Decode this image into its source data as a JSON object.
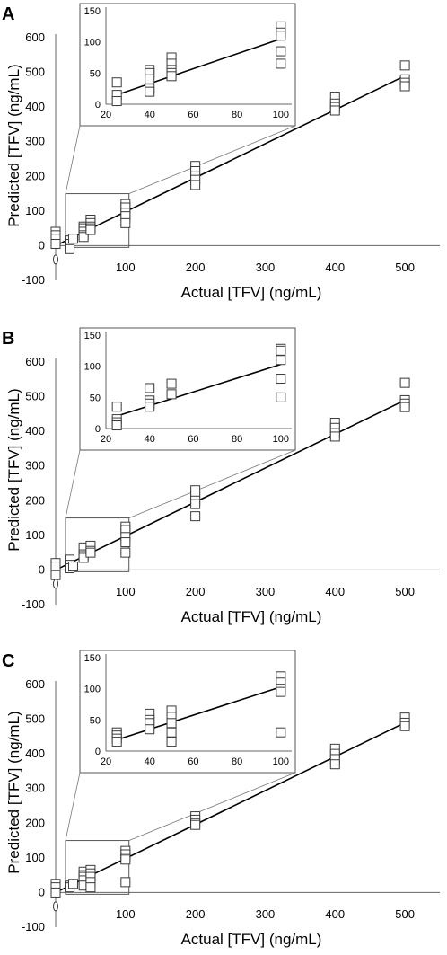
{
  "figure": {
    "chart_data": [
      {
        "type": "scatter",
        "panel": "A",
        "xlabel": "Actual [TFV] (ng/mL)",
        "ylabel": "Predicted [TFV] (ng/mL)",
        "x_ticks": [
          "100",
          "200",
          "300",
          "400",
          "500"
        ],
        "y_ticks": [
          "-100",
          "0",
          "100",
          "200",
          "300",
          "400",
          "500",
          "600"
        ],
        "xlim": [
          0,
          550
        ],
        "ylim": [
          -100,
          600
        ],
        "fit": [
          [
            0,
            0
          ],
          [
            500,
            490
          ]
        ],
        "points": [
          [
            0,
            40
          ],
          [
            0,
            30
          ],
          [
            0,
            20
          ],
          [
            0,
            5
          ],
          [
            0,
            -40
          ],
          [
            20,
            15
          ],
          [
            20,
            5
          ],
          [
            20,
            -10
          ],
          [
            25,
            20
          ],
          [
            40,
            55
          ],
          [
            40,
            50
          ],
          [
            40,
            40
          ],
          [
            40,
            30
          ],
          [
            40,
            25
          ],
          [
            50,
            75
          ],
          [
            50,
            65
          ],
          [
            50,
            55
          ],
          [
            50,
            50
          ],
          [
            50,
            45
          ],
          [
            100,
            120
          ],
          [
            100,
            110
          ],
          [
            100,
            95
          ],
          [
            100,
            85
          ],
          [
            100,
            65
          ],
          [
            200,
            230
          ],
          [
            200,
            215
          ],
          [
            200,
            200
          ],
          [
            200,
            190
          ],
          [
            200,
            175
          ],
          [
            400,
            430
          ],
          [
            400,
            410
          ],
          [
            400,
            400
          ],
          [
            400,
            390
          ],
          [
            500,
            520
          ],
          [
            500,
            480
          ],
          [
            500,
            470
          ],
          [
            500,
            460
          ]
        ],
        "inset": {
          "x_ticks": [
            "20",
            "40",
            "60",
            "80",
            "100"
          ],
          "y_ticks": [
            "0",
            "50",
            "100",
            "150"
          ],
          "xlim": [
            20,
            105
          ],
          "ylim": [
            0,
            150
          ],
          "fit": [
            [
              25,
              15
            ],
            [
              100,
              105
            ]
          ],
          "points": [
            [
              25,
              35
            ],
            [
              25,
              15
            ],
            [
              25,
              5
            ],
            [
              40,
              55
            ],
            [
              40,
              50
            ],
            [
              40,
              40
            ],
            [
              40,
              25
            ],
            [
              40,
              20
            ],
            [
              50,
              75
            ],
            [
              50,
              65
            ],
            [
              50,
              55
            ],
            [
              50,
              50
            ],
            [
              50,
              45
            ],
            [
              100,
              125
            ],
            [
              100,
              115
            ],
            [
              100,
              110
            ],
            [
              100,
              85
            ],
            [
              100,
              65
            ]
          ]
        }
      },
      {
        "type": "scatter",
        "panel": "B",
        "xlabel": "Actual [TFV] (ng/mL)",
        "ylabel": "Predicted [TFV] (ng/mL)",
        "x_ticks": [
          "100",
          "200",
          "300",
          "400",
          "500"
        ],
        "y_ticks": [
          "-100",
          "0",
          "100",
          "200",
          "300",
          "400",
          "500",
          "600"
        ],
        "xlim": [
          0,
          550
        ],
        "ylim": [
          -100,
          600
        ],
        "fit": [
          [
            0,
            0
          ],
          [
            500,
            490
          ]
        ],
        "points": [
          [
            0,
            20
          ],
          [
            0,
            10
          ],
          [
            0,
            -15
          ],
          [
            0,
            -40
          ],
          [
            20,
            30
          ],
          [
            20,
            15
          ],
          [
            20,
            5
          ],
          [
            25,
            10
          ],
          [
            40,
            65
          ],
          [
            40,
            45
          ],
          [
            40,
            40
          ],
          [
            40,
            35
          ],
          [
            50,
            70
          ],
          [
            50,
            55
          ],
          [
            50,
            50
          ],
          [
            100,
            125
          ],
          [
            100,
            115
          ],
          [
            100,
            95
          ],
          [
            100,
            80
          ],
          [
            100,
            50
          ],
          [
            200,
            230
          ],
          [
            200,
            215
          ],
          [
            200,
            200
          ],
          [
            200,
            190
          ],
          [
            200,
            155
          ],
          [
            400,
            425
          ],
          [
            400,
            410
          ],
          [
            400,
            395
          ],
          [
            400,
            385
          ],
          [
            500,
            540
          ],
          [
            500,
            490
          ],
          [
            500,
            480
          ],
          [
            500,
            470
          ]
        ],
        "inset": {
          "x_ticks": [
            "20",
            "40",
            "60",
            "80",
            "100"
          ],
          "y_ticks": [
            "0",
            "50",
            "100",
            "150"
          ],
          "xlim": [
            20,
            105
          ],
          "ylim": [
            0,
            150
          ],
          "fit": [
            [
              25,
              20
            ],
            [
              100,
              103
            ]
          ],
          "points": [
            [
              25,
              35
            ],
            [
              25,
              15
            ],
            [
              25,
              10
            ],
            [
              25,
              5
            ],
            [
              40,
              65
            ],
            [
              40,
              45
            ],
            [
              40,
              40
            ],
            [
              40,
              35
            ],
            [
              50,
              72
            ],
            [
              50,
              55
            ],
            [
              100,
              128
            ],
            [
              100,
              125
            ],
            [
              100,
              110
            ],
            [
              100,
              80
            ],
            [
              100,
              50
            ]
          ]
        }
      },
      {
        "type": "scatter",
        "panel": "C",
        "xlabel": "Actual [TFV] (ng/mL)",
        "ylabel": "Predicted [TFV] (ng/mL)",
        "x_ticks": [
          "100",
          "200",
          "300",
          "400",
          "500"
        ],
        "y_ticks": [
          "-100",
          "0",
          "100",
          "200",
          "300",
          "400",
          "500",
          "600"
        ],
        "xlim": [
          0,
          550
        ],
        "ylim": [
          -100,
          600
        ],
        "fit": [
          [
            0,
            0
          ],
          [
            500,
            490
          ]
        ],
        "points": [
          [
            0,
            25
          ],
          [
            0,
            15
          ],
          [
            0,
            0
          ],
          [
            0,
            -40
          ],
          [
            20,
            20
          ],
          [
            20,
            15
          ],
          [
            25,
            25
          ],
          [
            40,
            60
          ],
          [
            40,
            50
          ],
          [
            40,
            45
          ],
          [
            40,
            35
          ],
          [
            40,
            20
          ],
          [
            50,
            65
          ],
          [
            50,
            55
          ],
          [
            50,
            45
          ],
          [
            50,
            30
          ],
          [
            50,
            15
          ],
          [
            100,
            120
          ],
          [
            100,
            110
          ],
          [
            100,
            100
          ],
          [
            100,
            95
          ],
          [
            100,
            30
          ],
          [
            200,
            220
          ],
          [
            200,
            210
          ],
          [
            200,
            200
          ],
          [
            200,
            195
          ],
          [
            400,
            415
          ],
          [
            400,
            400
          ],
          [
            400,
            385
          ],
          [
            400,
            370
          ],
          [
            500,
            505
          ],
          [
            500,
            490
          ],
          [
            500,
            480
          ]
        ],
        "inset": {
          "x_ticks": [
            "20",
            "40",
            "60",
            "80",
            "100"
          ],
          "y_ticks": [
            "0",
            "50",
            "100",
            "150"
          ],
          "xlim": [
            20,
            105
          ],
          "ylim": [
            0,
            150
          ],
          "fit": [
            [
              25,
              18
            ],
            [
              100,
              103
            ]
          ],
          "points": [
            [
              25,
              30
            ],
            [
              25,
              25
            ],
            [
              25,
              20
            ],
            [
              25,
              15
            ],
            [
              40,
              60
            ],
            [
              40,
              50
            ],
            [
              40,
              45
            ],
            [
              40,
              35
            ],
            [
              50,
              65
            ],
            [
              50,
              55
            ],
            [
              50,
              45
            ],
            [
              50,
              30
            ],
            [
              50,
              15
            ],
            [
              100,
              120
            ],
            [
              100,
              110
            ],
            [
              100,
              100
            ],
            [
              100,
              95
            ],
            [
              100,
              30
            ]
          ]
        }
      }
    ]
  }
}
